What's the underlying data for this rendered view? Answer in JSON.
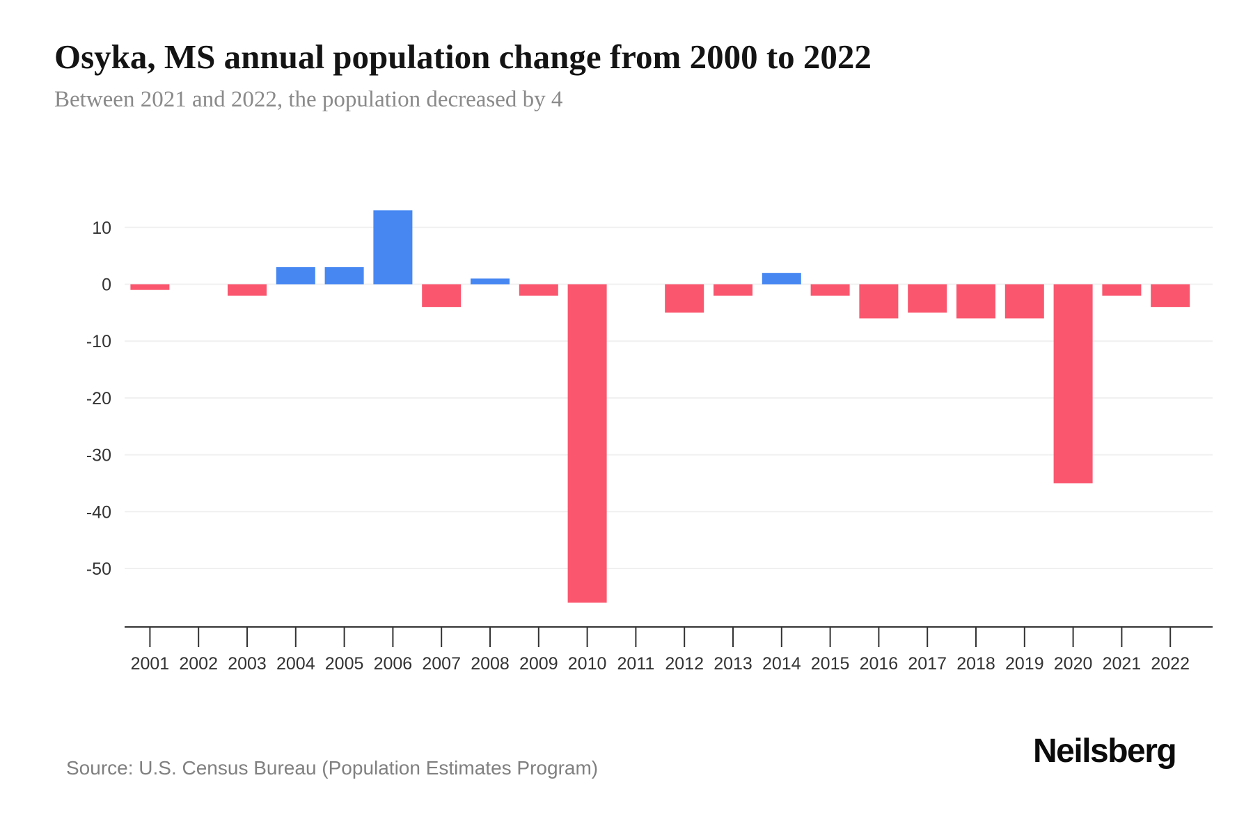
{
  "header": {
    "title": "Osyka, MS annual population change from 2000 to 2022",
    "subtitle": "Between 2021 and 2022, the population decreased by 4"
  },
  "footer": {
    "source": "Source: U.S. Census Bureau (Population Estimates Program)",
    "logo": "Neilsberg"
  },
  "chart_data": {
    "type": "bar",
    "title": "Osyka, MS annual population change from 2000 to 2022",
    "subtitle": "Between 2021 and 2022, the population decreased by 4",
    "categories": [
      "2001",
      "2002",
      "2003",
      "2004",
      "2005",
      "2006",
      "2007",
      "2008",
      "2009",
      "2010",
      "2011",
      "2012",
      "2013",
      "2014",
      "2015",
      "2016",
      "2017",
      "2018",
      "2019",
      "2020",
      "2021",
      "2022"
    ],
    "values": [
      -1,
      0,
      -2,
      3,
      3,
      13,
      -4,
      1,
      -2,
      -56,
      0,
      -5,
      -2,
      2,
      -2,
      -6,
      -5,
      -6,
      -6,
      -35,
      -2,
      -4
    ],
    "xlabel": "",
    "ylabel": "",
    "yticks": [
      10,
      0,
      -10,
      -20,
      -30,
      -40,
      -50
    ],
    "ylim": [
      -60,
      15
    ],
    "grid": true,
    "legend_position": "none",
    "colors": {
      "positive_bar": "#4687f2",
      "negative_bar": "#fa566e",
      "gridline": "#f0f0f0",
      "axis_line": "#333333",
      "tick_label": "#333333"
    }
  }
}
